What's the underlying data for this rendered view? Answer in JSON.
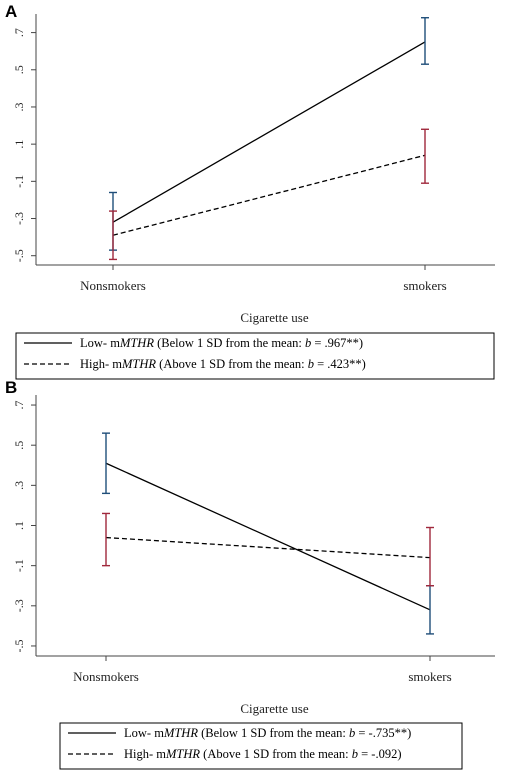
{
  "chart_data": [
    {
      "panel": "A",
      "type": "line",
      "xlabel": "Cigarette use",
      "categories": [
        "Nonsmokers",
        "smokers"
      ],
      "y_ticks": [
        ".7",
        ".5",
        ".3",
        ".1",
        "-.1",
        "-.3",
        "-.5"
      ],
      "ylim": [
        -0.55,
        0.8
      ],
      "grid": false,
      "series": [
        {
          "name": "Low- mMTHR (Below 1 SD from the mean: b = .967**)",
          "legend_parts": [
            "Low- m",
            "MTHR",
            " (Below 1 SD from the mean: ",
            "b",
            " = .967**)"
          ],
          "line_style": "solid",
          "values": [
            -0.32,
            0.65
          ],
          "ci_low": [
            -0.47,
            0.53
          ],
          "ci_high": [
            -0.16,
            0.78
          ]
        },
        {
          "name": "High- mMTHR (Above 1 SD from the mean: b = .423**)",
          "legend_parts": [
            "High- m",
            "MTHR",
            " (Above 1 SD from the mean: ",
            "b",
            " = .423**)"
          ],
          "line_style": "dashed",
          "values": [
            -0.39,
            0.04
          ],
          "ci_low": [
            -0.52,
            -0.11
          ],
          "ci_high": [
            -0.26,
            0.18
          ]
        }
      ]
    },
    {
      "panel": "B",
      "type": "line",
      "xlabel": "Cigarette use",
      "categories": [
        "Nonsmokers",
        "smokers"
      ],
      "y_ticks": [
        ".7",
        ".5",
        ".3",
        ".1",
        "-.1",
        "-.3",
        "-.5"
      ],
      "ylim": [
        -0.55,
        0.75
      ],
      "grid": false,
      "series": [
        {
          "name": "Low- mMTHR (Below 1 SD from the mean: b = -.735**)",
          "legend_parts": [
            "Low- m",
            "MTHR",
            " (Below 1 SD from the mean: ",
            "b",
            " = -.735**)"
          ],
          "line_style": "solid",
          "values": [
            0.41,
            -0.32
          ],
          "ci_low": [
            0.26,
            -0.44
          ],
          "ci_high": [
            0.56,
            -0.2
          ]
        },
        {
          "name": "High- mMTHR (Above 1 SD from the mean: b = -.092)",
          "legend_parts": [
            "High- m",
            "MTHR",
            " (Above 1 SD from the mean: ",
            "b",
            " = -.092)"
          ],
          "line_style": "dashed",
          "values": [
            0.04,
            -0.06
          ],
          "ci_low": [
            -0.1,
            -0.2
          ],
          "ci_high": [
            0.16,
            0.09
          ]
        }
      ]
    }
  ],
  "colors": {
    "line": "#000000",
    "low_ci": "#1f4e79",
    "high_ci": "#a0283c",
    "axis": "#444444"
  }
}
